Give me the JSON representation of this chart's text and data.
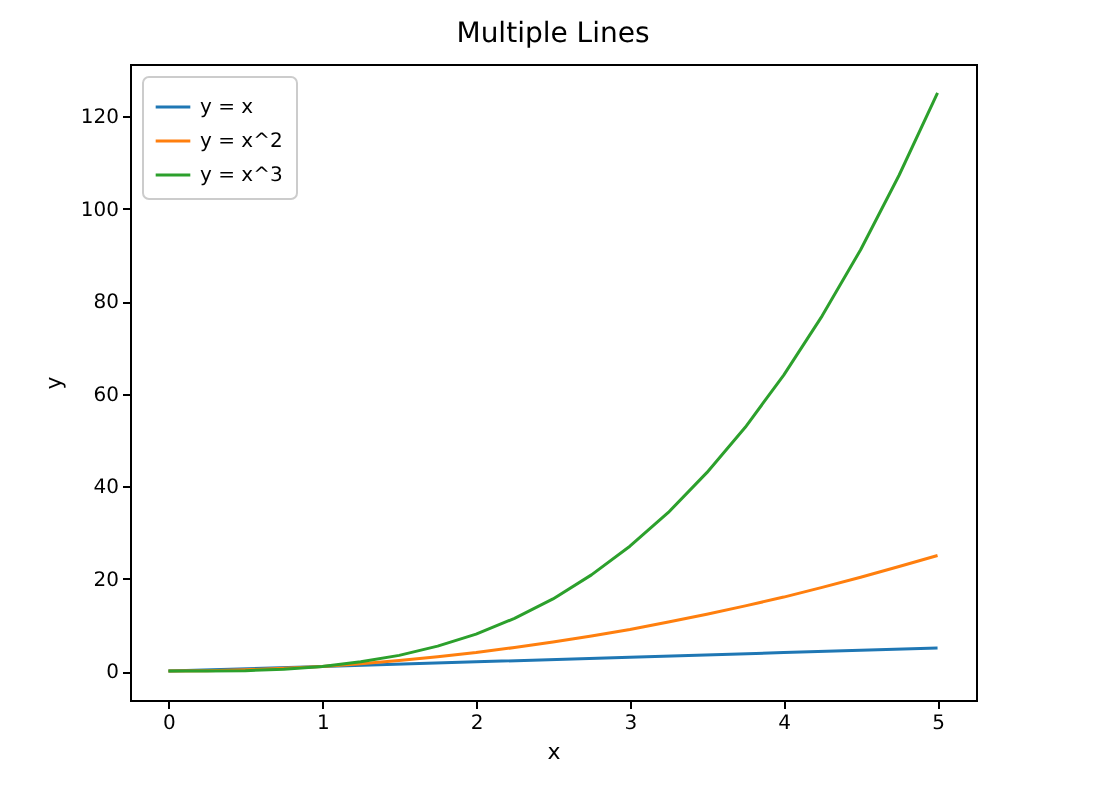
{
  "chart_data": {
    "type": "line",
    "title": "Multiple Lines",
    "xlabel": "x",
    "ylabel": "y",
    "x": [
      0,
      0.25,
      0.5,
      0.75,
      1,
      1.25,
      1.5,
      1.75,
      2,
      2.25,
      2.5,
      2.75,
      3,
      3.25,
      3.5,
      3.75,
      4,
      4.25,
      4.5,
      4.75,
      5
    ],
    "series": [
      {
        "name": "y = x",
        "color": "#1f77b4",
        "x": [
          0,
          1,
          2,
          3,
          4,
          5
        ],
        "values": [
          0,
          1,
          2,
          3,
          4,
          5
        ]
      },
      {
        "name": "y = x^2",
        "color": "#ff7f0e",
        "values": [
          0,
          0.1,
          0.3,
          0.6,
          1,
          1.6,
          2.3,
          3.1,
          4,
          5.1,
          6.3,
          7.6,
          9,
          10.6,
          12.3,
          14.1,
          16,
          18.1,
          20.3,
          22.6,
          25
        ]
      },
      {
        "name": "y = x^3",
        "color": "#2ca02c",
        "values": [
          0,
          0,
          0.1,
          0.4,
          1,
          2,
          3.4,
          5.4,
          8,
          11.4,
          15.6,
          20.8,
          27,
          34.3,
          42.9,
          52.7,
          64,
          76.8,
          91.1,
          107.2,
          125
        ]
      }
    ],
    "xlim": [
      -0.25,
      5.25
    ],
    "xticks": [
      0,
      1,
      2,
      3,
      4,
      5
    ],
    "ylim": [
      -6.25,
      131.25
    ],
    "yticks": [
      0,
      20,
      40,
      60,
      80,
      100,
      120
    ],
    "grid": false,
    "legend": "top left",
    "line_style": "solid"
  }
}
